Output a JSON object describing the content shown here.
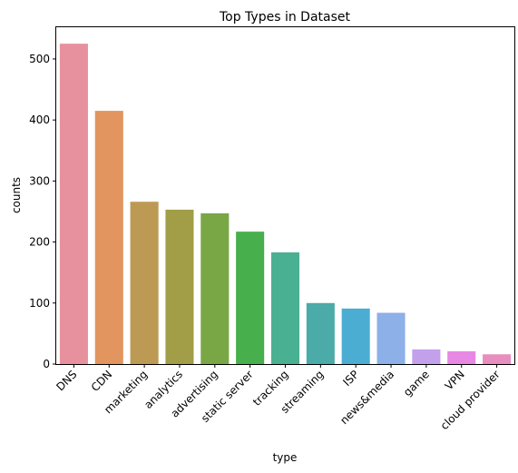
{
  "chart_data": {
    "type": "bar",
    "title": "Top Types in Dataset",
    "xlabel": "type",
    "ylabel": "counts",
    "categories": [
      "DNS",
      "CDN",
      "marketing",
      "analytics",
      "advertising",
      "static server",
      "tracking",
      "streaming",
      "ISP",
      "news&media",
      "game",
      "VPN",
      "cloud provider"
    ],
    "values": [
      525,
      415,
      266,
      253,
      247,
      217,
      183,
      100,
      91,
      84,
      24,
      21,
      16
    ],
    "ylim": [
      0,
      552
    ],
    "yticks": [
      0,
      100,
      200,
      300,
      400,
      500
    ],
    "grid": false,
    "colors": [
      "#e8919e",
      "#e2955e",
      "#bc9a53",
      "#a29e47",
      "#7aa746",
      "#47af4c",
      "#49b092",
      "#4baba9",
      "#4cadd3",
      "#8db0e8",
      "#c3a0ec",
      "#e789e4",
      "#e88dbf"
    ]
  }
}
